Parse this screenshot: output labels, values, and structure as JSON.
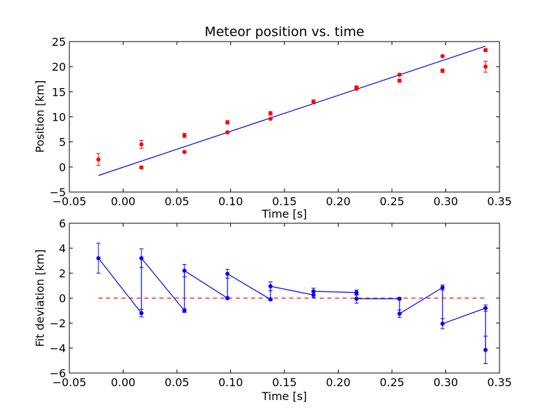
{
  "chart_data": [
    {
      "type": "scatter",
      "title": "Meteor position vs. time",
      "xlabel": "Time [s]",
      "ylabel": "Position [km]",
      "xlim": [
        -0.05,
        0.35
      ],
      "ylim": [
        -5,
        25
      ],
      "xticks": [
        "−0.05",
        "0.00",
        "0.05",
        "0.10",
        "0.15",
        "0.20",
        "0.25",
        "0.30",
        "0.35"
      ],
      "yticks": [
        "−5",
        "0",
        "5",
        "10",
        "15",
        "20",
        "25"
      ],
      "xtick_values": [
        -0.05,
        0,
        0.05,
        0.1,
        0.15,
        0.2,
        0.25,
        0.3,
        0.35
      ],
      "ytick_values": [
        -5,
        0,
        5,
        10,
        15,
        20,
        25
      ],
      "colors": {
        "points": "#ff0000",
        "fit": "#0000ff"
      },
      "points": [
        {
          "x": -0.023,
          "y": 1.5,
          "err": 1.2
        },
        {
          "x": 0.017,
          "y": -0.1,
          "err": 0.25
        },
        {
          "x": 0.017,
          "y": 4.5,
          "err": 0.8
        },
        {
          "x": 0.057,
          "y": 3.0,
          "err": 0.2
        },
        {
          "x": 0.057,
          "y": 6.3,
          "err": 0.4
        },
        {
          "x": 0.097,
          "y": 6.9,
          "err": 0.15
        },
        {
          "x": 0.097,
          "y": 8.9,
          "err": 0.35
        },
        {
          "x": 0.137,
          "y": 9.6,
          "err": 0.1
        },
        {
          "x": 0.137,
          "y": 10.7,
          "err": 0.35
        },
        {
          "x": 0.177,
          "y": 13.0,
          "err": 0.4
        },
        {
          "x": 0.217,
          "y": 15.6,
          "err": 0.25
        },
        {
          "x": 0.217,
          "y": 15.9,
          "err": 0.2
        },
        {
          "x": 0.257,
          "y": 17.2,
          "err": 0.3
        },
        {
          "x": 0.257,
          "y": 18.4,
          "err": 0.2
        },
        {
          "x": 0.297,
          "y": 19.2,
          "err": 0.35
        },
        {
          "x": 0.297,
          "y": 22.1,
          "err": 0.2
        },
        {
          "x": 0.337,
          "y": 20.0,
          "err": 1.1
        },
        {
          "x": 0.337,
          "y": 23.3,
          "err": 0.3
        }
      ],
      "fit_line": {
        "x": [
          -0.023,
          0.337
        ],
        "y": [
          -1.7,
          24.1
        ]
      }
    },
    {
      "type": "line",
      "xlabel": "Time [s]",
      "ylabel": "Fit deviation [km]",
      "xlim": [
        -0.05,
        0.35
      ],
      "ylim": [
        -6,
        6
      ],
      "xticks": [
        "−0.05",
        "0.00",
        "0.05",
        "0.10",
        "0.15",
        "0.20",
        "0.25",
        "0.30",
        "0.35"
      ],
      "yticks": [
        "−6",
        "−4",
        "−2",
        "0",
        "2",
        "4",
        "6"
      ],
      "xtick_values": [
        -0.05,
        0,
        0.05,
        0.1,
        0.15,
        0.2,
        0.25,
        0.3,
        0.35
      ],
      "ytick_values": [
        -6,
        -4,
        -2,
        0,
        2,
        4,
        6
      ],
      "colors": {
        "series": "#0000ff",
        "zero_line": "#ff0000"
      },
      "zero_line": {
        "x": [
          -0.023,
          0.337
        ],
        "y": 0
      },
      "points": [
        {
          "x": -0.023,
          "y": 3.2,
          "err": 1.2
        },
        {
          "x": 0.017,
          "y": -1.2,
          "err": 0.3
        },
        {
          "x": 0.017,
          "y": 3.2,
          "err": 0.75
        },
        {
          "x": 0.057,
          "y": -1.0,
          "err": 0.15
        },
        {
          "x": 0.057,
          "y": 2.2,
          "err": 0.5
        },
        {
          "x": 0.097,
          "y": 0.0,
          "err": 0.1
        },
        {
          "x": 0.097,
          "y": 1.95,
          "err": 0.35
        },
        {
          "x": 0.137,
          "y": -0.1,
          "err": 0.1
        },
        {
          "x": 0.137,
          "y": 0.95,
          "err": 0.35
        },
        {
          "x": 0.177,
          "y": 0.25,
          "err": 0.2
        },
        {
          "x": 0.177,
          "y": 0.55,
          "err": 0.25
        },
        {
          "x": 0.217,
          "y": 0.45,
          "err": 0.2
        },
        {
          "x": 0.217,
          "y": -0.05,
          "err": 0.35
        },
        {
          "x": 0.257,
          "y": -0.05,
          "err": 0.1
        },
        {
          "x": 0.257,
          "y": -1.25,
          "err": 0.3
        },
        {
          "x": 0.297,
          "y": 0.85,
          "err": 0.2
        },
        {
          "x": 0.297,
          "y": -2.05,
          "err": 0.4
        },
        {
          "x": 0.337,
          "y": -0.8,
          "err": 0.25
        },
        {
          "x": 0.337,
          "y": -4.15,
          "err": 1.1
        }
      ]
    }
  ]
}
